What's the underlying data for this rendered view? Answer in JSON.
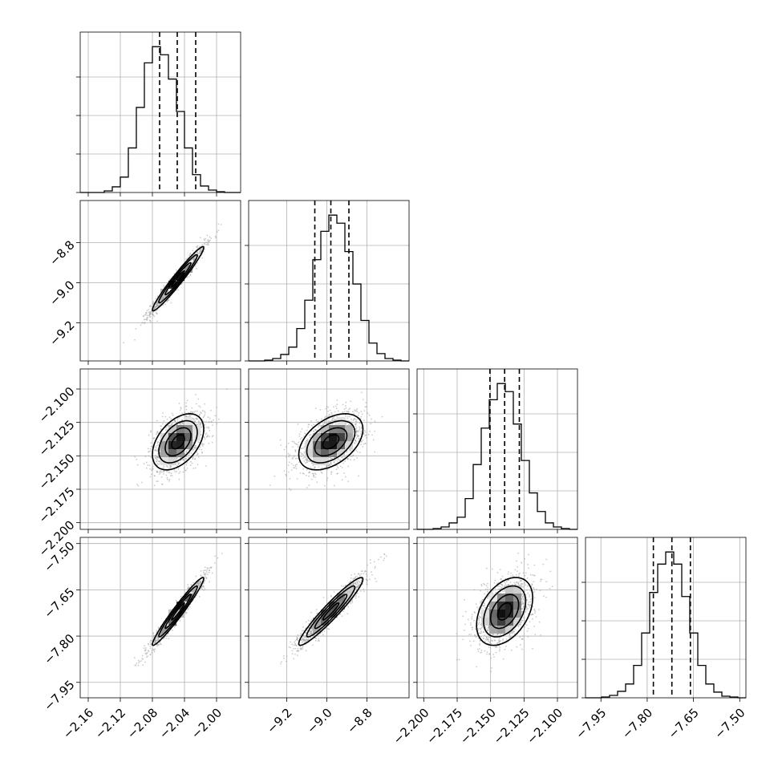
{
  "chart_data": {
    "type": "corner",
    "n_params": 4,
    "params": [
      {
        "id": "p0",
        "range": [
          -2.17,
          -1.97
        ],
        "ticks": [
          -2.16,
          -2.12,
          -2.08,
          -2.04,
          -2.0
        ],
        "tick_labels": [
          "−2.16",
          "−2.12",
          "−2.08",
          "−2.04",
          "−2.00"
        ],
        "mean": -2.048,
        "sd": 0.016,
        "quantiles": [
          -2.071,
          -2.049,
          -2.026
        ],
        "hist_bin_edges": [
          -2.17,
          -2.16,
          -2.15,
          -2.14,
          -2.13,
          -2.12,
          -2.11,
          -2.1,
          -2.09,
          -2.08,
          -2.07,
          -2.06,
          -2.05,
          -2.04,
          -2.03,
          -2.02,
          -2.01,
          -2.0,
          -1.99,
          -1.98,
          -1.97
        ],
        "hist_counts": [
          0,
          0,
          0,
          2,
          7,
          19,
          55,
          105,
          160,
          180,
          170,
          140,
          100,
          55,
          22,
          8,
          3,
          1,
          0,
          0
        ]
      },
      {
        "id": "p1",
        "range": [
          -9.39,
          -8.59
        ],
        "ticks": [
          -9.2,
          -9.0,
          -8.8
        ],
        "tick_labels": [
          "−9.2",
          "−9.0",
          "−8.8"
        ],
        "mean": -8.98,
        "sd": 0.08,
        "quantiles": [
          -9.06,
          -8.98,
          -8.89
        ],
        "hist_bin_edges": [
          -9.39,
          -9.35,
          -9.31,
          -9.27,
          -9.23,
          -9.19,
          -9.15,
          -9.11,
          -9.07,
          -9.03,
          -8.99,
          -8.95,
          -8.91,
          -8.87,
          -8.83,
          -8.79,
          -8.75,
          -8.71,
          -8.67,
          -8.63,
          -8.59
        ],
        "hist_counts": [
          0,
          0,
          1,
          3,
          8,
          17,
          40,
          75,
          125,
          160,
          180,
          170,
          135,
          95,
          50,
          22,
          9,
          3,
          1,
          0
        ]
      },
      {
        "id": "p2",
        "range": [
          -2.205,
          -2.085
        ],
        "ticks": [
          -2.2,
          -2.175,
          -2.15,
          -2.125,
          -2.1
        ],
        "tick_labels": [
          "−2.200",
          "−2.175",
          "−2.150",
          "−2.125",
          "−2.100"
        ],
        "mean": -2.1395,
        "sd": 0.0105,
        "quantiles": [
          -2.1505,
          -2.1395,
          -2.1285
        ],
        "hist_bin_edges": [
          -2.205,
          -2.199,
          -2.193,
          -2.187,
          -2.181,
          -2.175,
          -2.169,
          -2.163,
          -2.157,
          -2.151,
          -2.145,
          -2.139,
          -2.133,
          -2.127,
          -2.121,
          -2.115,
          -2.109,
          -2.103,
          -2.097,
          -2.091,
          -2.085
        ],
        "hist_counts": [
          0,
          0,
          1,
          3,
          8,
          15,
          38,
          80,
          125,
          160,
          180,
          170,
          130,
          85,
          45,
          22,
          8,
          3,
          1,
          0
        ]
      },
      {
        "id": "p3",
        "range": [
          -8.0,
          -7.48
        ],
        "ticks": [
          -7.95,
          -7.8,
          -7.65,
          -7.5
        ],
        "tick_labels": [
          "−7.95",
          "−7.80",
          "−7.65",
          "−7.50"
        ],
        "mean": -7.72,
        "sd": 0.055,
        "quantiles": [
          -7.78,
          -7.72,
          -7.66
        ],
        "hist_bin_edges": [
          -8.0,
          -7.974,
          -7.948,
          -7.922,
          -7.896,
          -7.87,
          -7.844,
          -7.818,
          -7.792,
          -7.766,
          -7.74,
          -7.714,
          -7.688,
          -7.662,
          -7.636,
          -7.61,
          -7.584,
          -7.558,
          -7.532,
          -7.506,
          -7.48
        ],
        "hist_counts": [
          0,
          0,
          1,
          3,
          8,
          17,
          40,
          80,
          130,
          165,
          180,
          165,
          125,
          80,
          40,
          17,
          7,
          2,
          1,
          0
        ]
      }
    ],
    "pairs": [
      {
        "x": "p0",
        "y": "p1",
        "correlation": 0.97
      },
      {
        "x": "p0",
        "y": "p2",
        "correlation": 0.45
      },
      {
        "x": "p1",
        "y": "p2",
        "correlation": 0.45
      },
      {
        "x": "p0",
        "y": "p3",
        "correlation": 0.97
      },
      {
        "x": "p1",
        "y": "p3",
        "correlation": 0.95
      },
      {
        "x": "p2",
        "y": "p3",
        "correlation": 0.4
      }
    ],
    "contour_levels_sigma": [
      0.5,
      1.0,
      1.5,
      2.0
    ],
    "scatter_points_per_panel": 1300,
    "grid": true,
    "colors": {
      "line": "#000000",
      "grid": "#b0b0b0",
      "points": "#a0a0a0"
    }
  }
}
